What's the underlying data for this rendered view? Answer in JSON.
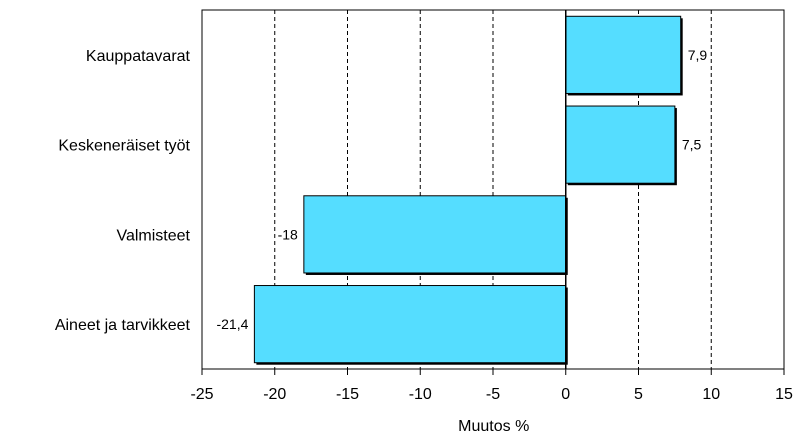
{
  "chart_data": {
    "type": "bar",
    "orientation": "horizontal",
    "categories": [
      "Kauppatavarat",
      "Keskeneräiset työt",
      "Valmisteet",
      "Aineet ja tarvikkeet"
    ],
    "series": [
      {
        "values": [
          7.9,
          7.5,
          -18,
          -21.4
        ],
        "labels": [
          "7,9",
          "7,5",
          "-18",
          "-21,4"
        ],
        "color": "#55DDFF"
      }
    ],
    "xlabel": "Muutos %",
    "xlim": [
      -25,
      15
    ],
    "xticks": [
      -25,
      -20,
      -15,
      -10,
      -5,
      0,
      5,
      10,
      15
    ],
    "xtick_labels": [
      "-25",
      "-20",
      "-15",
      "-10",
      "-5",
      "0",
      "5",
      "10",
      "15"
    ],
    "grid": "vertical dashed",
    "legend": "none"
  }
}
